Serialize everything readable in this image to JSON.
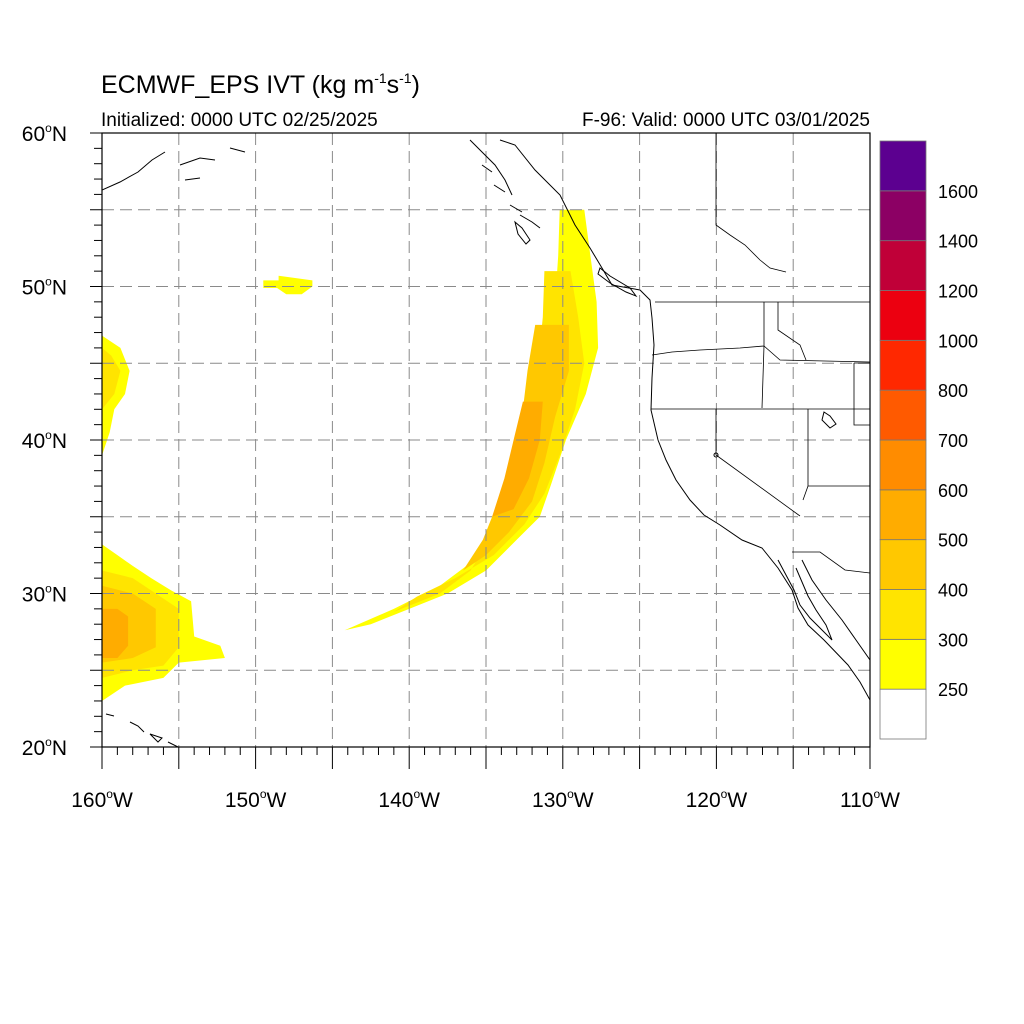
{
  "title": {
    "main": "ECMWF_EPS IVT (kg m",
    "sup1": "-1",
    "mid": "s",
    "sup2": "-1",
    "end": ")"
  },
  "initialized": "Initialized: 0000 UTC 02/25/2025",
  "valid": "F-96: Valid: 0000 UTC 03/01/2025",
  "map": {
    "lon_range": [
      -160,
      -110
    ],
    "lat_range": [
      20,
      60
    ],
    "grid": "dashed every 5 degrees",
    "lon_labels": [
      {
        "lon": -160,
        "deg": "160",
        "hem": "W"
      },
      {
        "lon": -150,
        "deg": "150",
        "hem": "W"
      },
      {
        "lon": -140,
        "deg": "140",
        "hem": "W"
      },
      {
        "lon": -130,
        "deg": "130",
        "hem": "W"
      },
      {
        "lon": -120,
        "deg": "120",
        "hem": "W"
      },
      {
        "lon": -110,
        "deg": "110",
        "hem": "W"
      }
    ],
    "lat_labels": [
      {
        "lat": 60,
        "deg": "60",
        "hem": "N"
      },
      {
        "lat": 50,
        "deg": "50",
        "hem": "N"
      },
      {
        "lat": 40,
        "deg": "40",
        "hem": "N"
      },
      {
        "lat": 30,
        "deg": "30",
        "hem": "N"
      },
      {
        "lat": 20,
        "deg": "20",
        "hem": "N"
      }
    ]
  },
  "colorbar": {
    "colors": [
      "#ffffff",
      "#ffff00",
      "#ffe400",
      "#ffc800",
      "#ffac00",
      "#ff8c00",
      "#ff5a00",
      "#ff2800",
      "#ec0010",
      "#c00038",
      "#8c0064",
      "#5c0090"
    ],
    "labels": [
      "250",
      "300",
      "400",
      "500",
      "600",
      "700",
      "800",
      "1000",
      "1200",
      "1400",
      "1600"
    ]
  },
  "features": {
    "ar_main": "atmospheric river: narrow arc from about 144W 28N curving northeast to about 130W 55N along the British Columbia coast, core 500-600",
    "blob_sw": "IVT region near 160W-152W 23N-33N, core 500",
    "blob_w": "IVT region near 160W-158W 39N-47N, 250-300",
    "blob_small": "small IVT patch near 149W-146W 50N, 250"
  }
}
